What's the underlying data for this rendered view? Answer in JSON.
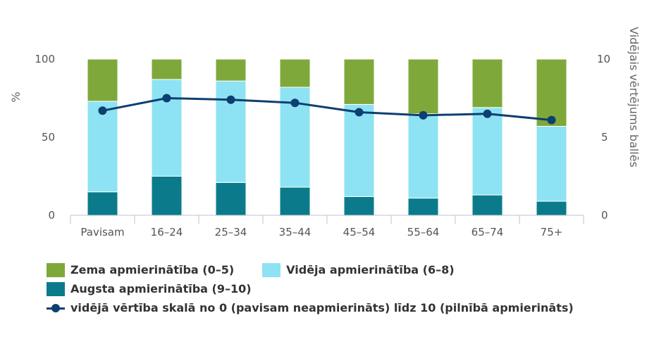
{
  "chart_data": {
    "type": "bar",
    "stacked": true,
    "categories": [
      "Pavisam",
      "16–24",
      "25–34",
      "35–44",
      "45–54",
      "55–64",
      "65–74",
      "75+"
    ],
    "series": [
      {
        "name": "Augsta apmierinātība (9–10)",
        "values": [
          15,
          25,
          21,
          18,
          12,
          11,
          13,
          9
        ],
        "color": "#0b7b8c"
      },
      {
        "name": "Vidēja apmierinātība (6–8)",
        "values": [
          58,
          62,
          65,
          64,
          59,
          54,
          56,
          48
        ],
        "color": "#8de3f3"
      },
      {
        "name": "Zema apmierinātība (0–5)",
        "values": [
          27,
          13,
          14,
          18,
          29,
          35,
          31,
          43
        ],
        "color": "#7fa83a"
      }
    ],
    "line_series": {
      "name": "vidējā vērtība skalā no 0 (pavisam neapmierināts) līdz 10 (pilnībā apmierināts)",
      "values": [
        6.7,
        7.5,
        7.4,
        7.2,
        6.6,
        6.4,
        6.5,
        6.1
      ],
      "color": "#0d3f70"
    },
    "ylabel": "%",
    "y2label": "Vidējais vērtējums ballēs",
    "ylim": [
      0,
      100
    ],
    "y2lim": [
      0,
      10
    ],
    "yticks": [
      "100",
      "50",
      "0"
    ],
    "y2ticks": [
      "10",
      "5",
      "0"
    ],
    "legend_position": "bottom"
  }
}
